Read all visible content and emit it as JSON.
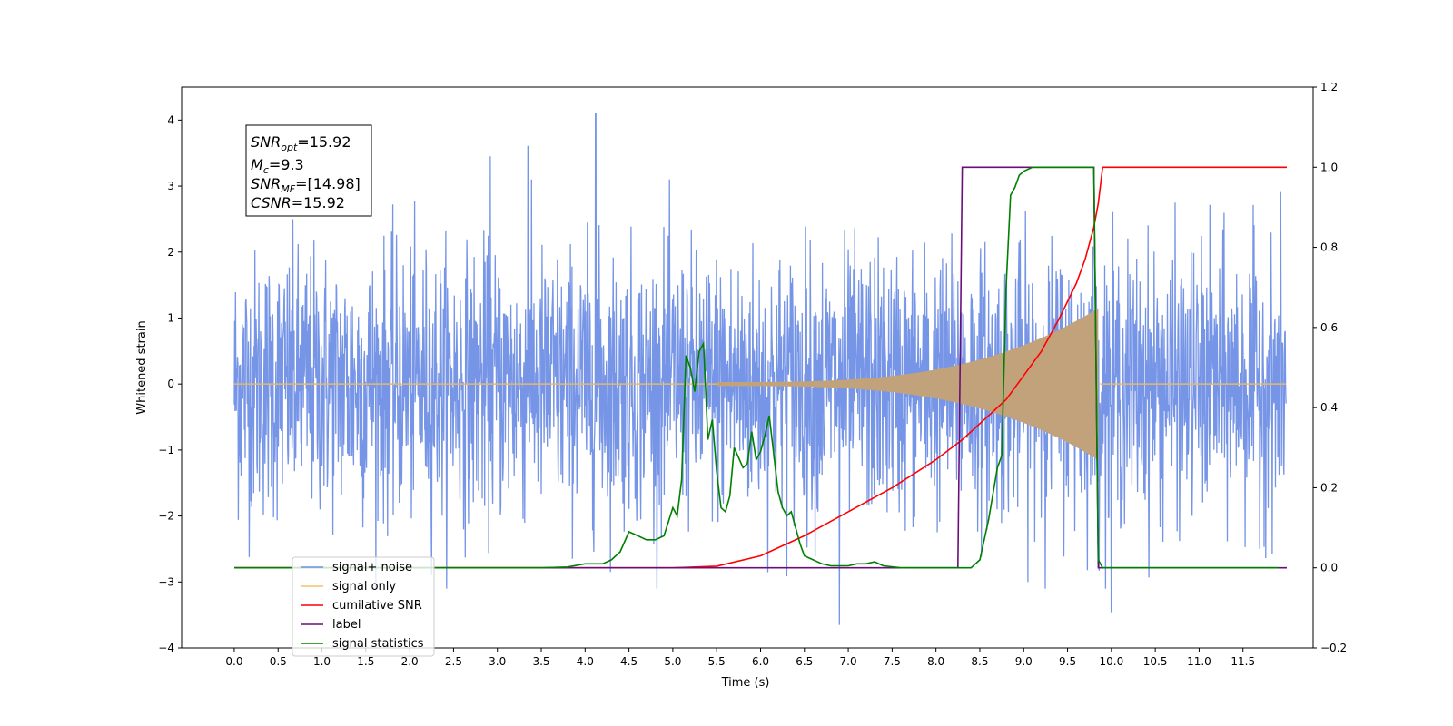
{
  "chart_data": {
    "type": "line",
    "title": "",
    "xlabel": "Time (s)",
    "ylabel": "Whitened strain",
    "xlim": [
      -0.6,
      12.3
    ],
    "ylim": [
      -4,
      4.5
    ],
    "y2lim": [
      -0.2,
      1.2
    ],
    "x_ticks": [
      "0.0",
      "0.5",
      "1.0",
      "1.5",
      "2.0",
      "2.5",
      "3.0",
      "3.5",
      "4.0",
      "4.5",
      "5.0",
      "5.5",
      "6.0",
      "6.5",
      "7.0",
      "7.5",
      "8.0",
      "8.5",
      "9.0",
      "9.5",
      "10.0",
      "10.5",
      "11.0",
      "11.5"
    ],
    "y_ticks": [
      "4",
      "3",
      "2",
      "1",
      "0",
      "−1",
      "−2",
      "−3",
      "−4"
    ],
    "y2_ticks": [
      "1.2",
      "1.0",
      "0.8",
      "0.6",
      "0.4",
      "0.2",
      "0.0",
      "−0.2"
    ],
    "grid": false,
    "legend_position": "lower-left",
    "annotation": {
      "lines": [
        {
          "base": "SNR",
          "sub": "opt",
          "rest": "=15.92"
        },
        {
          "base": "M",
          "sub": "c",
          "rest": "=9.3"
        },
        {
          "base": "SNR",
          "sub": "MF",
          "rest": "=[14.98]"
        },
        {
          "base": "CSNR",
          "sub": "",
          "rest": "=15.92"
        }
      ]
    },
    "legend": [
      {
        "label": "signal+ noise",
        "color": "#6f8fe6"
      },
      {
        "label": "signal only",
        "color": "#f5c26b"
      },
      {
        "label": "cumilative SNR",
        "color": "#ff0000"
      },
      {
        "label": "label",
        "color": "#6a0f7a"
      },
      {
        "label": "signal statistics",
        "color": "#008000"
      }
    ],
    "series": [
      {
        "name": "signal+ noise",
        "axis": "left",
        "color": "#6f8fe6",
        "x_range": [
          0,
          11.99
        ],
        "noise_sigma": 1.0,
        "notable_peaks": [
          [
            4.12,
            4.1
          ],
          [
            3.35,
            3.6
          ],
          [
            2.92,
            3.45
          ],
          [
            6.9,
            -3.65
          ],
          [
            10.0,
            -3.45
          ]
        ]
      },
      {
        "name": "signal only",
        "axis": "left",
        "color": "#f5c26b",
        "chirp_start": 5.5,
        "merger_time": 9.85,
        "peak_amplitude": 1.15,
        "amplitude_at_start": 0.03
      },
      {
        "name": "cumilative SNR",
        "axis": "right",
        "color": "#ff0000",
        "x": [
          0,
          5.0,
          5.5,
          6.0,
          6.5,
          7.0,
          7.5,
          8.0,
          8.3,
          8.5,
          8.8,
          9.0,
          9.2,
          9.4,
          9.6,
          9.7,
          9.8,
          9.85,
          9.9,
          12.0
        ],
        "y": [
          0,
          0,
          0.004,
          0.03,
          0.08,
          0.14,
          0.2,
          0.27,
          0.32,
          0.36,
          0.42,
          0.48,
          0.54,
          0.62,
          0.71,
          0.77,
          0.85,
          0.91,
          1.0,
          1.0
        ]
      },
      {
        "name": "label",
        "axis": "right",
        "color": "#6a0f7a",
        "x": [
          0,
          8.25,
          8.3,
          9.8,
          9.85,
          12.0
        ],
        "y": [
          0,
          0,
          1,
          1,
          0,
          0
        ]
      },
      {
        "name": "signal statistics",
        "axis": "right",
        "color": "#008000",
        "x": [
          0,
          3.0,
          3.5,
          3.8,
          4.0,
          4.2,
          4.3,
          4.4,
          4.5,
          4.6,
          4.7,
          4.8,
          4.9,
          5.0,
          5.05,
          5.1,
          5.15,
          5.2,
          5.25,
          5.3,
          5.35,
          5.4,
          5.45,
          5.5,
          5.55,
          5.6,
          5.65,
          5.7,
          5.8,
          5.85,
          5.9,
          5.95,
          6.0,
          6.05,
          6.1,
          6.2,
          6.25,
          6.3,
          6.35,
          6.4,
          6.45,
          6.5,
          6.6,
          6.7,
          6.8,
          7.0,
          7.1,
          7.2,
          7.3,
          7.4,
          7.6,
          7.8,
          8.0,
          8.3,
          8.4,
          8.5,
          8.6,
          8.7,
          8.75,
          8.8,
          8.85,
          8.9,
          8.95,
          9.0,
          9.1,
          9.3,
          9.5,
          9.8,
          9.85,
          9.9,
          10.0,
          11.9
        ],
        "y": [
          0,
          0,
          0,
          0.002,
          0.01,
          0.01,
          0.02,
          0.04,
          0.09,
          0.08,
          0.07,
          0.07,
          0.08,
          0.15,
          0.13,
          0.22,
          0.53,
          0.5,
          0.44,
          0.54,
          0.56,
          0.32,
          0.37,
          0.24,
          0.15,
          0.14,
          0.18,
          0.3,
          0.25,
          0.26,
          0.34,
          0.27,
          0.29,
          0.33,
          0.38,
          0.19,
          0.15,
          0.13,
          0.14,
          0.1,
          0.06,
          0.03,
          0.02,
          0.01,
          0.005,
          0.005,
          0.01,
          0.01,
          0.015,
          0.005,
          0.0,
          0.0,
          0.0,
          0.0,
          0.0,
          0.02,
          0.12,
          0.25,
          0.28,
          0.7,
          0.93,
          0.95,
          0.98,
          0.99,
          1.0,
          1.0,
          1.0,
          1.0,
          0.02,
          0.0,
          0.0,
          0.0
        ]
      }
    ]
  }
}
